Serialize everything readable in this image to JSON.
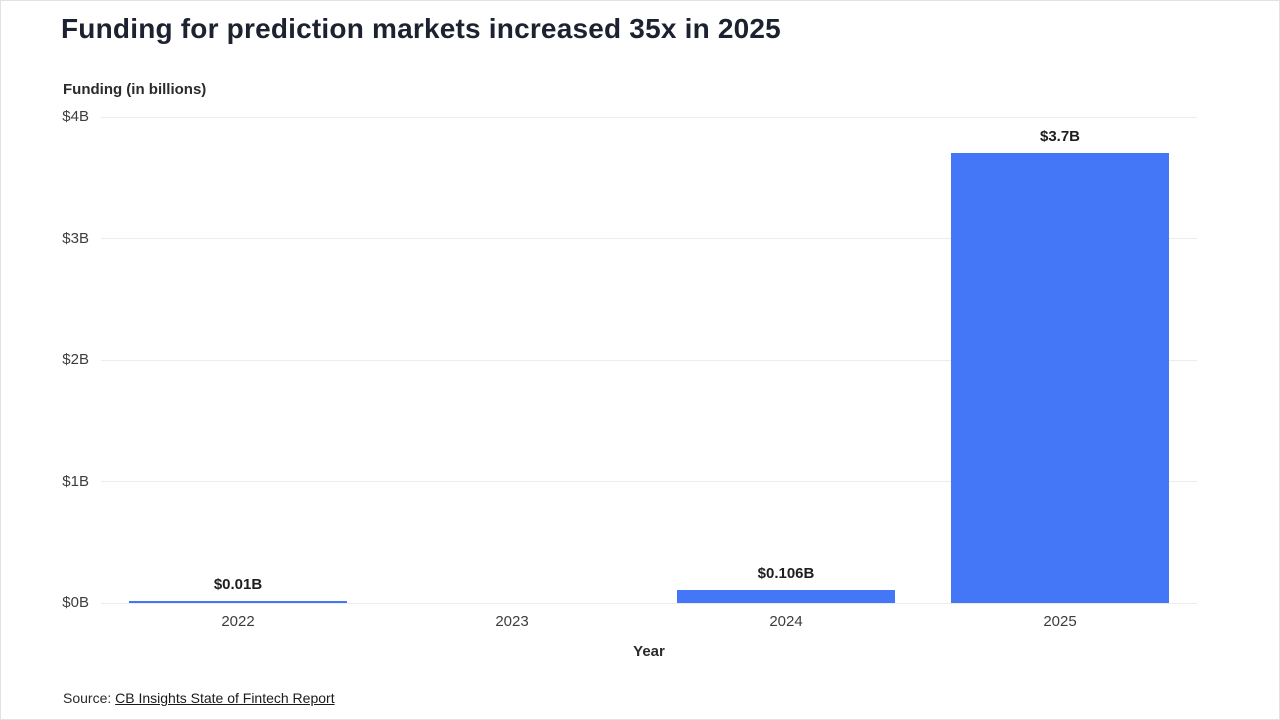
{
  "title": "Funding for prediction markets increased 35x in 2025",
  "y_axis_title": "Funding (in billions)",
  "x_axis_title": "Year",
  "source": {
    "prefix": "Source: ",
    "link_text": "CB Insights State of Fintech Report"
  },
  "colors": {
    "bar": "#4377f7",
    "grid": "#ececec",
    "title_text": "#1d2230"
  },
  "chart_data": {
    "type": "bar",
    "categories": [
      "2022",
      "2023",
      "2024",
      "2025"
    ],
    "values": [
      0.01,
      0,
      0.106,
      3.7
    ],
    "data_labels": [
      "$0.01B",
      "",
      "$0.106B",
      "$3.7B"
    ],
    "title": "Funding for prediction markets increased 35x in 2025",
    "xlabel": "Year",
    "ylabel": "Funding (in billions)",
    "ylim": [
      0,
      4
    ],
    "ytick_interval": 1,
    "ytick_labels": [
      "$0B",
      "$1B",
      "$2B",
      "$3B",
      "$4B"
    ],
    "grid": true,
    "legend": false
  }
}
